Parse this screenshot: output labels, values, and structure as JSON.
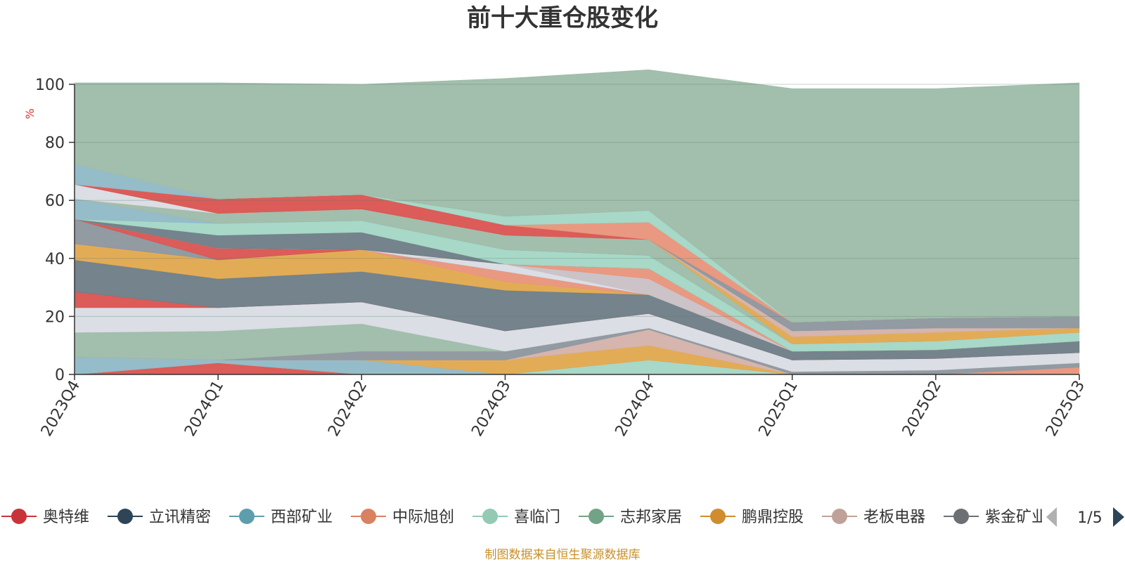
{
  "chart_data": {
    "type": "area",
    "stacked": true,
    "title": "前十大重仓股变化",
    "ylabel": "%",
    "ylim": [
      0,
      100
    ],
    "yticks": [
      0,
      20,
      40,
      60,
      80,
      100
    ],
    "grid": true,
    "categories": [
      "2023Q4",
      "2024Q1",
      "2024Q2",
      "2024Q3",
      "2024Q4",
      "2025Q1",
      "2025Q2",
      "2025Q3"
    ],
    "series": [
      {
        "name": "奥特维",
        "color": "#d9534f",
        "values": [
          0,
          4,
          0,
          0,
          0,
          0,
          0,
          0
        ]
      },
      {
        "name": "喜临门",
        "color": "#a3d6c4",
        "values": [
          0,
          0,
          0,
          0,
          5,
          0,
          0,
          0
        ]
      },
      {
        "name": "中际旭创",
        "color": "#e8937a",
        "values": [
          0,
          0,
          0,
          0,
          0,
          0,
          0,
          2.5
        ]
      },
      {
        "name": "",
        "color": "#8fb8c6",
        "values": [
          6,
          1,
          5,
          0,
          0,
          0,
          0,
          0
        ]
      },
      {
        "name": "鹏鼎控股",
        "color": "#e0a84e",
        "values": [
          0,
          0,
          0,
          5,
          5,
          0,
          0,
          0
        ]
      },
      {
        "name": "老板电器",
        "color": "#d3b1a9",
        "values": [
          0,
          0,
          0,
          0,
          5.5,
          0,
          0,
          0
        ]
      },
      {
        "name": "紫金矿业",
        "color": "#8c959d",
        "values": [
          0,
          0,
          3,
          3,
          0.5,
          1,
          1.5,
          1.5
        ]
      },
      {
        "name": "",
        "color": "#9dbba8",
        "values": [
          8.5,
          10,
          9.5,
          0,
          0,
          0,
          0,
          0
        ]
      },
      {
        "name": "",
        "color": "#d9dce3",
        "values": [
          8.5,
          8,
          7.5,
          7,
          5,
          4,
          4,
          3.5
        ]
      },
      {
        "name": "",
        "color": "#d9534f",
        "values": [
          5.5,
          0,
          0,
          0,
          0,
          0,
          0,
          0
        ]
      },
      {
        "name": "立讯精密",
        "color": "#6d7c86",
        "values": [
          11,
          10,
          10.5,
          14,
          6.5,
          3,
          3,
          4
        ]
      },
      {
        "name": "",
        "color": "#e0a84e",
        "values": [
          5.5,
          6.5,
          7.5,
          3,
          0,
          0,
          0,
          0
        ]
      },
      {
        "name": "",
        "color": "#e8937a",
        "values": [
          0,
          0,
          0,
          3.5,
          0,
          0,
          0,
          0
        ]
      },
      {
        "name": "",
        "color": "#8c959d",
        "values": [
          8.5,
          0,
          0,
          0,
          0,
          0,
          0,
          0
        ]
      },
      {
        "name": "",
        "color": "#d9534f",
        "values": [
          0,
          4,
          0,
          0,
          0,
          0,
          0,
          0
        ]
      },
      {
        "name": "",
        "color": "#d9dce3",
        "values": [
          0,
          0,
          0,
          2.5,
          0,
          0,
          0,
          0
        ]
      },
      {
        "name": "",
        "color": "#c8c0c4",
        "values": [
          0,
          0,
          0,
          0,
          5.5,
          0,
          0,
          0
        ]
      },
      {
        "name": "",
        "color": "#e8937a",
        "values": [
          0,
          0,
          0,
          0,
          3.5,
          0,
          0,
          0
        ]
      },
      {
        "name": "",
        "color": "#6d7c86",
        "values": [
          0,
          4.5,
          6,
          0,
          0,
          0,
          0,
          0
        ]
      },
      {
        "name": "",
        "color": "#a3d6c4",
        "values": [
          0,
          4,
          4,
          5,
          4.5,
          2.5,
          3,
          3
        ]
      },
      {
        "name": "",
        "color": "#8fb8c6",
        "values": [
          7,
          0,
          0,
          0,
          0,
          0,
          0,
          0
        ]
      },
      {
        "name": "",
        "color": "#9dbba8",
        "values": [
          0,
          3.5,
          4,
          5,
          5.5,
          0,
          0,
          0
        ]
      },
      {
        "name": "",
        "color": "#e0a84e",
        "values": [
          0,
          0,
          0,
          0,
          0,
          2.5,
          3,
          1.5
        ]
      },
      {
        "name": "",
        "color": "#d3b1a9",
        "values": [
          0,
          0,
          0,
          0,
          0,
          2,
          1.5,
          0
        ]
      },
      {
        "name": "",
        "color": "#8c959d",
        "values": [
          0,
          0,
          0,
          0,
          0,
          3,
          3.5,
          4
        ]
      },
      {
        "name": "",
        "color": "#d9dce3",
        "values": [
          5,
          0,
          0,
          0,
          0,
          0,
          0,
          0
        ]
      },
      {
        "name": "",
        "color": "#d9534f",
        "values": [
          0,
          5,
          5,
          3.5,
          0,
          0,
          0,
          0
        ]
      },
      {
        "name": "",
        "color": "#e8937a",
        "values": [
          0,
          0,
          0,
          0,
          6,
          0,
          0,
          0
        ]
      },
      {
        "name": "",
        "color": "#8fb8c6",
        "values": [
          7,
          0,
          0,
          0,
          0,
          0,
          0,
          0
        ]
      },
      {
        "name": "",
        "color": "#a3d6c4",
        "values": [
          0,
          0,
          0,
          3,
          4,
          0,
          0,
          0
        ]
      },
      {
        "name": "",
        "color": "#9dbba8",
        "values": [
          28,
          40,
          38,
          47.5,
          48.5,
          80.5,
          79,
          80.5
        ]
      }
    ]
  },
  "legend": {
    "items": [
      {
        "name": "奥特维",
        "color": "#c9343a"
      },
      {
        "name": "立讯精密",
        "color": "#2e4557"
      },
      {
        "name": "西部矿业",
        "color": "#5e9eac"
      },
      {
        "name": "中际旭创",
        "color": "#d98163"
      },
      {
        "name": "喜临门",
        "color": "#93cab4"
      },
      {
        "name": "志邦家居",
        "color": "#72a386"
      },
      {
        "name": "鹏鼎控股",
        "color": "#cf8d2e"
      },
      {
        "name": "老板电器",
        "color": "#bfa199"
      },
      {
        "name": "紫金矿业",
        "color": "#6c6f74"
      }
    ],
    "page": "1/5"
  },
  "footer": "制图数据来自恒生聚源数据库"
}
